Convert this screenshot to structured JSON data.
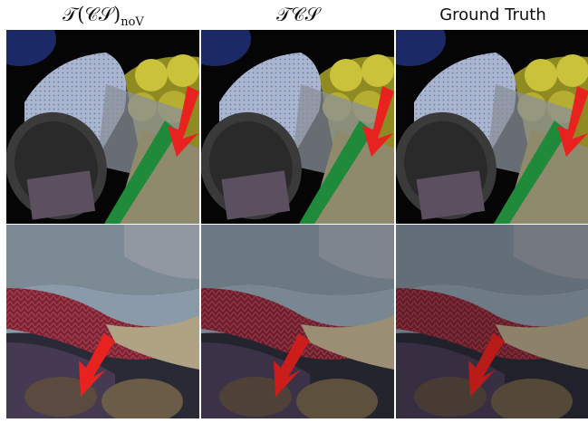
{
  "headers": [
    {
      "main": "𝒯(𝒞𝒮)",
      "sub": "noV"
    },
    {
      "main": "𝒯𝒞𝒮"
    },
    {
      "main": "Ground Truth"
    }
  ]
}
